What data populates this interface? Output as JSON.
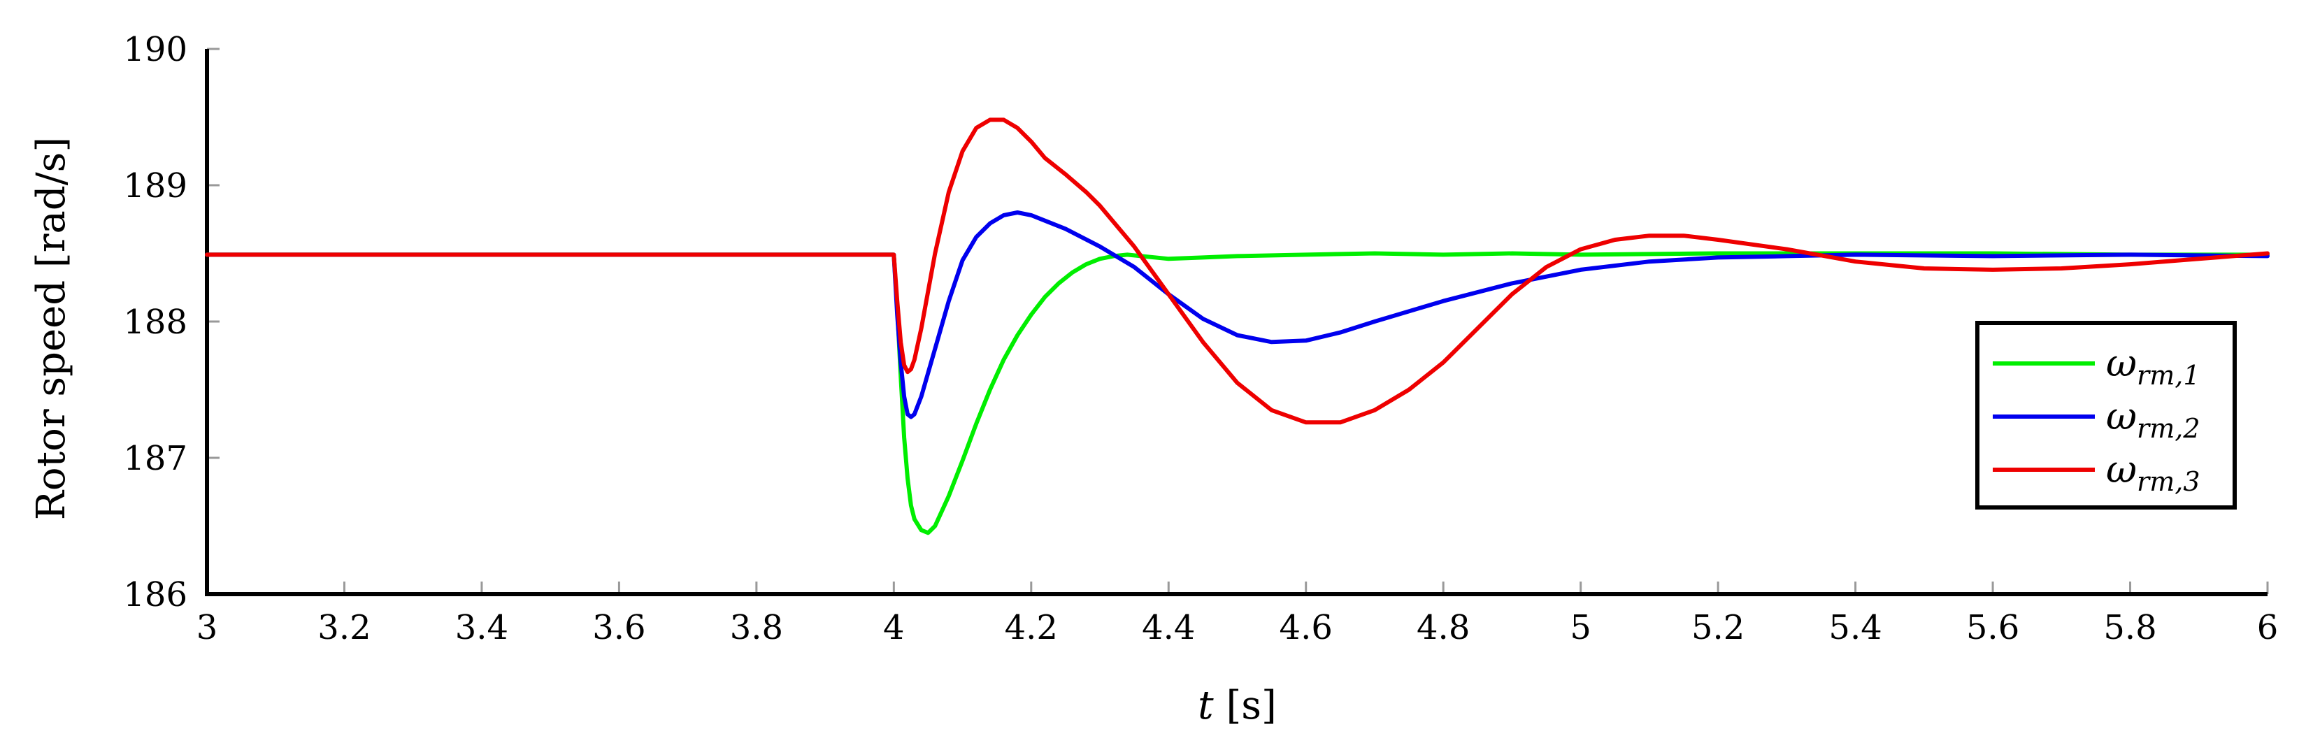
{
  "chart_data": {
    "type": "line",
    "xlabel_var": "t",
    "xlabel_unit": "[s]",
    "ylabel": "Rotor speed [rad/s]",
    "xlim": [
      3,
      6
    ],
    "ylim": [
      186,
      190
    ],
    "xticks": [
      3,
      3.2,
      3.4,
      3.6,
      3.8,
      4,
      4.2,
      4.4,
      4.6,
      4.8,
      5,
      5.2,
      5.4,
      5.6,
      5.8,
      6
    ],
    "xtick_labels": [
      "3",
      "3.2",
      "3.4",
      "3.6",
      "3.8",
      "4",
      "4.2",
      "4.4",
      "4.6",
      "4.8",
      "5",
      "5.2",
      "5.4",
      "5.6",
      "5.8",
      "6"
    ],
    "yticks": [
      186,
      187,
      188,
      189,
      190
    ],
    "ytick_labels": [
      "186",
      "187",
      "188",
      "189",
      "190"
    ],
    "grid": false,
    "legend_position": "right",
    "series": [
      {
        "name": "ω_{rm,1}",
        "symbol": "ω",
        "subscript": "rm,1",
        "color": "#00ee00",
        "x": [
          3.0,
          3.2,
          3.4,
          3.6,
          3.8,
          4.0,
          4.005,
          4.01,
          4.015,
          4.02,
          4.025,
          4.03,
          4.04,
          4.05,
          4.06,
          4.08,
          4.1,
          4.12,
          4.14,
          4.16,
          4.18,
          4.2,
          4.22,
          4.24,
          4.26,
          4.28,
          4.3,
          4.32,
          4.34,
          4.36,
          4.4,
          4.45,
          4.5,
          4.6,
          4.7,
          4.8,
          4.9,
          5.0,
          5.2,
          5.4,
          5.6,
          5.8,
          6.0
        ],
        "y": [
          188.49,
          188.49,
          188.49,
          188.49,
          188.49,
          188.49,
          188.1,
          187.6,
          187.15,
          186.85,
          186.65,
          186.55,
          186.47,
          186.45,
          186.5,
          186.72,
          186.98,
          187.25,
          187.5,
          187.72,
          187.9,
          188.05,
          188.18,
          188.28,
          188.36,
          188.42,
          188.46,
          188.48,
          188.49,
          188.48,
          188.46,
          188.47,
          188.48,
          188.49,
          188.5,
          188.49,
          188.5,
          188.49,
          188.5,
          188.5,
          188.5,
          188.49,
          188.49
        ]
      },
      {
        "name": "ω_{rm,2}",
        "symbol": "ω",
        "subscript": "rm,2",
        "color": "#0000ee",
        "x": [
          3.0,
          3.2,
          3.4,
          3.6,
          3.8,
          4.0,
          4.005,
          4.01,
          4.015,
          4.02,
          4.025,
          4.03,
          4.04,
          4.06,
          4.08,
          4.1,
          4.12,
          4.14,
          4.16,
          4.18,
          4.2,
          4.22,
          4.25,
          4.3,
          4.35,
          4.4,
          4.45,
          4.5,
          4.55,
          4.6,
          4.65,
          4.7,
          4.8,
          4.9,
          5.0,
          5.1,
          5.2,
          5.3,
          5.4,
          5.6,
          5.8,
          6.0
        ],
        "y": [
          188.49,
          188.49,
          188.49,
          188.49,
          188.49,
          188.49,
          188.05,
          187.7,
          187.45,
          187.32,
          187.3,
          187.32,
          187.45,
          187.8,
          188.15,
          188.45,
          188.62,
          188.72,
          188.78,
          188.8,
          188.78,
          188.74,
          188.68,
          188.55,
          188.4,
          188.2,
          188.02,
          187.9,
          187.85,
          187.86,
          187.92,
          188.0,
          188.15,
          188.28,
          188.38,
          188.44,
          188.47,
          188.48,
          188.49,
          188.48,
          188.49,
          188.48
        ]
      },
      {
        "name": "ω_{rm,3}",
        "symbol": "ω",
        "subscript": "rm,3",
        "color": "#ee0000",
        "x": [
          3.0,
          3.2,
          3.4,
          3.6,
          3.8,
          4.0,
          4.005,
          4.01,
          4.015,
          4.02,
          4.025,
          4.03,
          4.04,
          4.06,
          4.08,
          4.1,
          4.12,
          4.14,
          4.16,
          4.18,
          4.2,
          4.22,
          4.25,
          4.28,
          4.3,
          4.35,
          4.4,
          4.45,
          4.5,
          4.55,
          4.6,
          4.65,
          4.7,
          4.75,
          4.8,
          4.85,
          4.9,
          4.95,
          5.0,
          5.05,
          5.1,
          5.15,
          5.2,
          5.3,
          5.4,
          5.5,
          5.6,
          5.7,
          5.8,
          5.9,
          6.0
        ],
        "y": [
          188.49,
          188.49,
          188.49,
          188.49,
          188.49,
          188.49,
          188.15,
          187.85,
          187.68,
          187.63,
          187.65,
          187.72,
          187.95,
          188.5,
          188.95,
          189.25,
          189.42,
          189.48,
          189.48,
          189.42,
          189.32,
          189.2,
          189.08,
          188.95,
          188.85,
          188.55,
          188.2,
          187.85,
          187.55,
          187.35,
          187.26,
          187.26,
          187.35,
          187.5,
          187.7,
          187.95,
          188.2,
          188.4,
          188.53,
          188.6,
          188.63,
          188.63,
          188.6,
          188.53,
          188.44,
          188.39,
          188.38,
          188.39,
          188.42,
          188.46,
          188.5
        ]
      }
    ]
  }
}
